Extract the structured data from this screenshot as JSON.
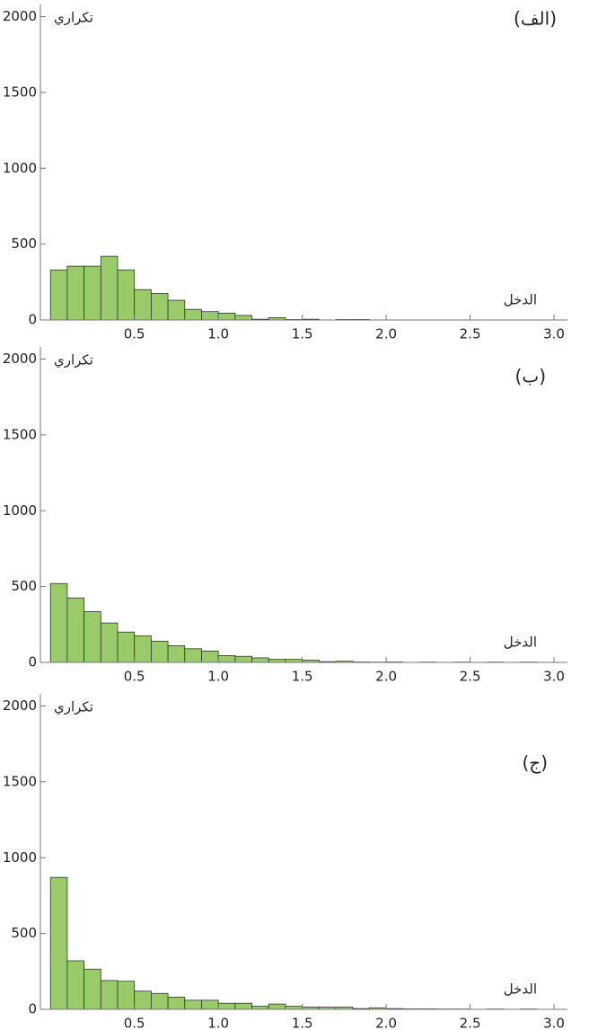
{
  "chart_data": [
    {
      "type": "histogram",
      "title": "(الف)",
      "xlabel": "الدخل",
      "ylabel": "تكراري",
      "color": "#9acb69",
      "bins": [
        0,
        0.1,
        0.2,
        0.3,
        0.4,
        0.5,
        0.6,
        0.7,
        0.8,
        0.9,
        1.0,
        1.1,
        1.2,
        1.3,
        1.4,
        1.5,
        1.6,
        1.7,
        1.8,
        1.9
      ],
      "values": [
        330,
        355,
        355,
        420,
        330,
        200,
        175,
        130,
        70,
        55,
        45,
        30,
        5,
        15,
        3,
        5,
        0,
        3,
        3
      ],
      "xlim": [
        -0.06,
        3.08
      ],
      "ylim": [
        0,
        2080
      ],
      "xticks": [
        0.5,
        {
          "value": 1,
          "label": "1.0"
        },
        1.5,
        {
          "value": 2,
          "label": "2.0"
        },
        2.5,
        {
          "value": 3,
          "label": "3.0"
        }
      ],
      "yticks": [
        0,
        500,
        1000,
        1500,
        2000
      ]
    },
    {
      "type": "histogram",
      "title": "(ب)",
      "xlabel": "الدخل",
      "ylabel": "تكراري",
      "color": "#9acb69",
      "bins": [
        0,
        0.1,
        0.2,
        0.3,
        0.4,
        0.5,
        0.6,
        0.7,
        0.8,
        0.9,
        1.0,
        1.1,
        1.2,
        1.3,
        1.4,
        1.5,
        1.6,
        1.7,
        1.8,
        1.9,
        2.0,
        2.1,
        2.2,
        2.3,
        2.4,
        2.5,
        2.6,
        2.7,
        2.8,
        2.9,
        3.0
      ],
      "values": [
        520,
        425,
        335,
        260,
        200,
        175,
        140,
        110,
        90,
        75,
        45,
        40,
        30,
        20,
        20,
        15,
        5,
        8,
        3,
        2,
        3,
        0,
        2,
        0,
        2,
        0,
        2,
        0,
        2,
        0
      ],
      "xlim": [
        -0.06,
        3.08
      ],
      "ylim": [
        0,
        2080
      ],
      "xticks": [
        0.5,
        {
          "value": 1,
          "label": "1.0"
        },
        1.5,
        {
          "value": 2,
          "label": "2.0"
        },
        2.5,
        {
          "value": 3,
          "label": "3.0"
        }
      ],
      "yticks": [
        0,
        500,
        1000,
        1500,
        2000
      ]
    },
    {
      "type": "histogram",
      "title": "(ج)",
      "xlabel": "الدخل",
      "ylabel": "تكراري",
      "color": "#9acb69",
      "bins": [
        0,
        0.1,
        0.2,
        0.3,
        0.4,
        0.5,
        0.6,
        0.7,
        0.8,
        0.9,
        1.0,
        1.1,
        1.2,
        1.3,
        1.4,
        1.5,
        1.6,
        1.7,
        1.8,
        1.9,
        2.0,
        2.1,
        2.2,
        2.3,
        2.4,
        2.5,
        2.6,
        2.7,
        2.8,
        2.9,
        3.0
      ],
      "values": [
        870,
        320,
        265,
        190,
        185,
        120,
        105,
        80,
        60,
        60,
        40,
        40,
        20,
        35,
        20,
        15,
        15,
        15,
        5,
        10,
        5,
        3,
        3,
        2,
        2,
        0,
        2,
        0,
        2,
        0
      ],
      "xlim": [
        -0.06,
        3.08
      ],
      "ylim": [
        0,
        2080
      ],
      "xticks": [
        0.5,
        {
          "value": 1,
          "label": "1.0"
        },
        1.5,
        {
          "value": 2,
          "label": "2.0"
        },
        2.5,
        {
          "value": 3,
          "label": "3.0"
        }
      ],
      "yticks": [
        0,
        500,
        1000,
        1500,
        2000
      ]
    }
  ]
}
